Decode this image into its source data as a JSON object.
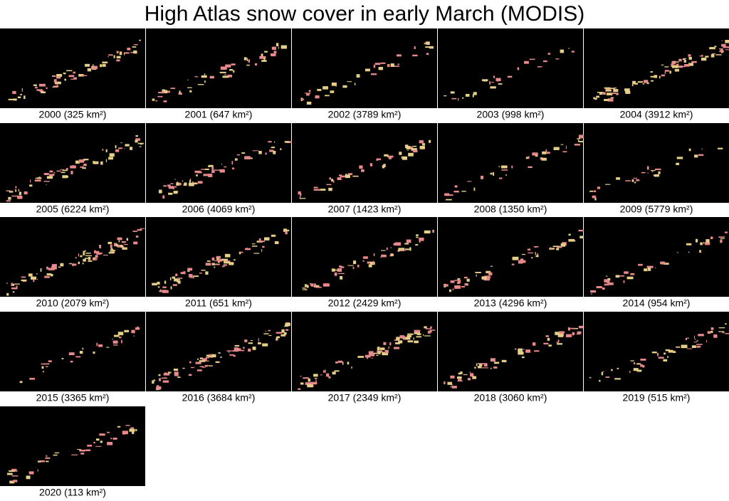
{
  "title": "High Atlas snow cover in early March (MODIS)",
  "panels": [
    {
      "caption": "2000 (325 km²)"
    },
    {
      "caption": "2001 (647 km²)"
    },
    {
      "caption": "2002 (3789 km²)"
    },
    {
      "caption": "2003 (998 km²)"
    },
    {
      "caption": "2004 (3912 km²)"
    },
    {
      "caption": "2005 (6224 km²)"
    },
    {
      "caption": "2006 (4069 km²)"
    },
    {
      "caption": "2007 (1423 km²)"
    },
    {
      "caption": "2008 (1350 km²)"
    },
    {
      "caption": "2009 (5779 km²)"
    },
    {
      "caption": "2010 (2079 km²)"
    },
    {
      "caption": "2011 (651 km²)"
    },
    {
      "caption": "2012 (2429 km²)"
    },
    {
      "caption": "2013 (4296 km²)"
    },
    {
      "caption": "2014 (954 km²)"
    },
    {
      "caption": "2015 (3365 km²)"
    },
    {
      "caption": "2016 (3684 km²)"
    },
    {
      "caption": "2017 (2349 km²)"
    },
    {
      "caption": "2018 (3060 km²)"
    },
    {
      "caption": "2019 (515 km²)"
    },
    {
      "caption": "2020 (113 km²)"
    }
  ]
}
